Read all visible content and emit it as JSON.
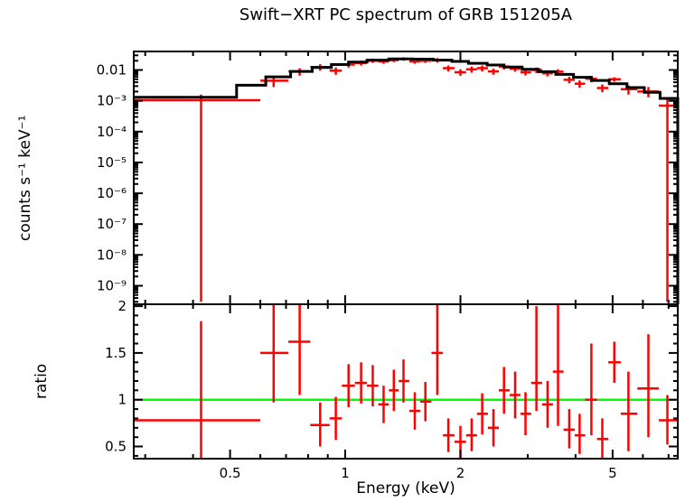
{
  "title": "Swift−XRT PC spectrum of GRB 151205A",
  "xlabel": "Energy (keV)",
  "colors": {
    "data": "#ff0000",
    "model": "#000000",
    "reference_line": "#00ff00",
    "axis": "#000000",
    "background": "#ffffff"
  },
  "chart_data": {
    "type": "scatter",
    "title": "Swift−XRT PC spectrum of GRB 151205A",
    "xlabel": "Energy (keV)",
    "x_scale": "log",
    "x_range": [
      0.28,
      7.4
    ],
    "x_major_ticks": [
      {
        "value": 0.5,
        "label": "0.5"
      },
      {
        "value": 1,
        "label": "1"
      },
      {
        "value": 2,
        "label": "2"
      },
      {
        "value": 5,
        "label": "5"
      }
    ],
    "x_minor_ticks": [
      0.3,
      0.4,
      0.6,
      0.7,
      0.8,
      0.9,
      3,
      4,
      6,
      7
    ],
    "points_format": [
      "energy_keV",
      "bin_lo_keV",
      "bin_hi_keV",
      "value",
      "errorbar_lo_value",
      "errorbar_hi_value"
    ],
    "panels": [
      {
        "name": "spectrum",
        "ylabel": "counts s⁻¹ keV⁻¹",
        "y_scale": "log",
        "y_range": [
          2.5e-10,
          0.04
        ],
        "y_major_ticks": [
          {
            "value": 0.01,
            "label": "0.01"
          },
          {
            "value": 0.001,
            "label": "10⁻³"
          },
          {
            "value": 0.0001,
            "label": "10⁻⁴"
          },
          {
            "value": 1e-05,
            "label": "10⁻⁵"
          },
          {
            "value": 1e-06,
            "label": "10⁻⁶"
          },
          {
            "value": 1e-07,
            "label": "10⁻⁷"
          },
          {
            "value": 1e-08,
            "label": "10⁻⁸"
          },
          {
            "value": 1e-09,
            "label": "10⁻⁹"
          }
        ],
        "points": [
          [
            0.42,
            0.28,
            0.6,
            0.00105,
            3e-10,
            0.0016
          ],
          [
            0.65,
            0.6,
            0.71,
            0.0045,
            0.0028,
            0.0062
          ],
          [
            0.76,
            0.71,
            0.81,
            0.009,
            0.0065,
            0.0115
          ],
          [
            0.86,
            0.81,
            0.91,
            0.0125,
            0.0095,
            0.0155
          ],
          [
            0.945,
            0.91,
            0.98,
            0.0095,
            0.007,
            0.012
          ],
          [
            1.02,
            0.98,
            1.06,
            0.015,
            0.012,
            0.018
          ],
          [
            1.1,
            1.06,
            1.14,
            0.017,
            0.014,
            0.02
          ],
          [
            1.18,
            1.14,
            1.22,
            0.02,
            0.017,
            0.0235
          ],
          [
            1.26,
            1.22,
            1.3,
            0.019,
            0.016,
            0.022
          ],
          [
            1.34,
            1.3,
            1.38,
            0.021,
            0.018,
            0.0245
          ],
          [
            1.42,
            1.38,
            1.47,
            0.023,
            0.02,
            0.026
          ],
          [
            1.52,
            1.47,
            1.57,
            0.019,
            0.016,
            0.022
          ],
          [
            1.62,
            1.57,
            1.68,
            0.02,
            0.017,
            0.023
          ],
          [
            1.74,
            1.68,
            1.8,
            0.021,
            0.0175,
            0.0245
          ],
          [
            1.86,
            1.8,
            1.93,
            0.0115,
            0.009,
            0.014
          ],
          [
            2.0,
            1.93,
            2.07,
            0.0085,
            0.0065,
            0.0105
          ],
          [
            2.14,
            2.07,
            2.21,
            0.0105,
            0.0082,
            0.013
          ],
          [
            2.28,
            2.21,
            2.36,
            0.0115,
            0.009,
            0.014
          ],
          [
            2.44,
            2.36,
            2.52,
            0.009,
            0.007,
            0.011
          ],
          [
            2.6,
            2.52,
            2.69,
            0.013,
            0.0105,
            0.0155
          ],
          [
            2.78,
            2.69,
            2.87,
            0.011,
            0.0088,
            0.0135
          ],
          [
            2.96,
            2.87,
            3.06,
            0.0085,
            0.0067,
            0.0105
          ],
          [
            3.16,
            3.06,
            3.27,
            0.01,
            0.008,
            0.012
          ],
          [
            3.38,
            3.27,
            3.49,
            0.0078,
            0.0062,
            0.0095
          ],
          [
            3.6,
            3.49,
            3.72,
            0.0088,
            0.007,
            0.0106
          ],
          [
            3.85,
            3.72,
            3.98,
            0.0048,
            0.0037,
            0.006
          ],
          [
            4.1,
            3.98,
            4.24,
            0.0036,
            0.0027,
            0.0046
          ],
          [
            4.4,
            4.24,
            4.55,
            0.0052,
            0.004,
            0.0064
          ],
          [
            4.7,
            4.55,
            4.87,
            0.0026,
            0.0019,
            0.0034
          ],
          [
            5.05,
            4.87,
            5.25,
            0.005,
            0.0042,
            0.0058
          ],
          [
            5.5,
            5.25,
            5.8,
            0.0024,
            0.0016,
            0.0032
          ],
          [
            6.2,
            5.8,
            6.6,
            0.002,
            0.0013,
            0.0028
          ],
          [
            6.95,
            6.6,
            7.4,
            0.0007,
            3e-10,
            0.00115
          ]
        ],
        "model_steps": [
          [
            0.28,
            0.52,
            0.0013
          ],
          [
            0.52,
            0.62,
            0.0032
          ],
          [
            0.62,
            0.72,
            0.006
          ],
          [
            0.72,
            0.82,
            0.009
          ],
          [
            0.82,
            0.92,
            0.012
          ],
          [
            0.92,
            1.02,
            0.015
          ],
          [
            1.02,
            1.14,
            0.018
          ],
          [
            1.14,
            1.3,
            0.021
          ],
          [
            1.3,
            1.5,
            0.023
          ],
          [
            1.5,
            1.7,
            0.0225
          ],
          [
            1.7,
            1.9,
            0.021
          ],
          [
            1.9,
            2.1,
            0.019
          ],
          [
            2.1,
            2.35,
            0.0165
          ],
          [
            2.35,
            2.6,
            0.0145
          ],
          [
            2.6,
            2.9,
            0.0125
          ],
          [
            2.9,
            3.2,
            0.0105
          ],
          [
            3.2,
            3.55,
            0.0088
          ],
          [
            3.55,
            3.95,
            0.0072
          ],
          [
            3.95,
            4.4,
            0.0058
          ],
          [
            4.4,
            4.9,
            0.0046
          ],
          [
            4.9,
            5.45,
            0.0036
          ],
          [
            5.45,
            6.05,
            0.0027
          ],
          [
            6.05,
            6.65,
            0.0019
          ],
          [
            6.65,
            7.4,
            0.0012
          ]
        ]
      },
      {
        "name": "ratio",
        "ylabel": "ratio",
        "y_scale": "linear",
        "y_range": [
          0.37,
          2.02
        ],
        "reference_line": 1,
        "y_major_ticks": [
          {
            "value": 0.5,
            "label": "0.5"
          },
          {
            "value": 1,
            "label": "1"
          },
          {
            "value": 1.5,
            "label": "1.5"
          },
          {
            "value": 2,
            "label": "2"
          }
        ],
        "points": [
          [
            0.42,
            0.28,
            0.6,
            0.78,
            0.05,
            1.84
          ],
          [
            0.65,
            0.6,
            0.71,
            1.5,
            0.97,
            2.05
          ],
          [
            0.76,
            0.71,
            0.81,
            1.62,
            1.05,
            2.3
          ],
          [
            0.86,
            0.81,
            0.91,
            0.73,
            0.5,
            0.97
          ],
          [
            0.945,
            0.91,
            0.98,
            0.8,
            0.57,
            1.03
          ],
          [
            1.02,
            0.98,
            1.06,
            1.15,
            0.92,
            1.38
          ],
          [
            1.1,
            1.06,
            1.14,
            1.18,
            0.96,
            1.4
          ],
          [
            1.18,
            1.14,
            1.22,
            1.15,
            0.93,
            1.37
          ],
          [
            1.26,
            1.22,
            1.3,
            0.95,
            0.75,
            1.15
          ],
          [
            1.34,
            1.3,
            1.38,
            1.1,
            0.88,
            1.32
          ],
          [
            1.42,
            1.38,
            1.47,
            1.2,
            0.97,
            1.43
          ],
          [
            1.52,
            1.47,
            1.57,
            0.88,
            0.68,
            1.08
          ],
          [
            1.62,
            1.57,
            1.68,
            0.98,
            0.77,
            1.19
          ],
          [
            1.74,
            1.68,
            1.8,
            1.5,
            1.05,
            2.05
          ],
          [
            1.86,
            1.8,
            1.93,
            0.62,
            0.44,
            0.8
          ],
          [
            2.0,
            1.93,
            2.07,
            0.55,
            0.38,
            0.72
          ],
          [
            2.14,
            2.07,
            2.21,
            0.62,
            0.45,
            0.8
          ],
          [
            2.28,
            2.21,
            2.36,
            0.85,
            0.63,
            1.07
          ],
          [
            2.44,
            2.36,
            2.52,
            0.7,
            0.5,
            0.9
          ],
          [
            2.6,
            2.52,
            2.69,
            1.1,
            0.85,
            1.35
          ],
          [
            2.78,
            2.69,
            2.87,
            1.05,
            0.8,
            1.3
          ],
          [
            2.96,
            2.87,
            3.06,
            0.85,
            0.62,
            1.08
          ],
          [
            3.16,
            3.06,
            3.27,
            1.18,
            0.88,
            2.0
          ],
          [
            3.38,
            3.27,
            3.49,
            0.95,
            0.7,
            1.2
          ],
          [
            3.6,
            3.49,
            3.72,
            1.3,
            0.72,
            2.05
          ],
          [
            3.85,
            3.72,
            3.98,
            0.68,
            0.48,
            0.9
          ],
          [
            4.1,
            3.98,
            4.24,
            0.62,
            0.42,
            0.85
          ],
          [
            4.4,
            4.24,
            4.55,
            1.0,
            0.62,
            1.6
          ],
          [
            4.7,
            4.55,
            4.87,
            0.58,
            0.38,
            0.8
          ],
          [
            5.05,
            4.87,
            5.25,
            1.4,
            1.18,
            1.62
          ],
          [
            5.5,
            5.25,
            5.8,
            0.85,
            0.45,
            1.3
          ],
          [
            6.2,
            5.8,
            6.6,
            1.12,
            0.6,
            1.7
          ],
          [
            6.95,
            6.6,
            7.4,
            0.78,
            0.52,
            1.05
          ]
        ]
      }
    ]
  }
}
